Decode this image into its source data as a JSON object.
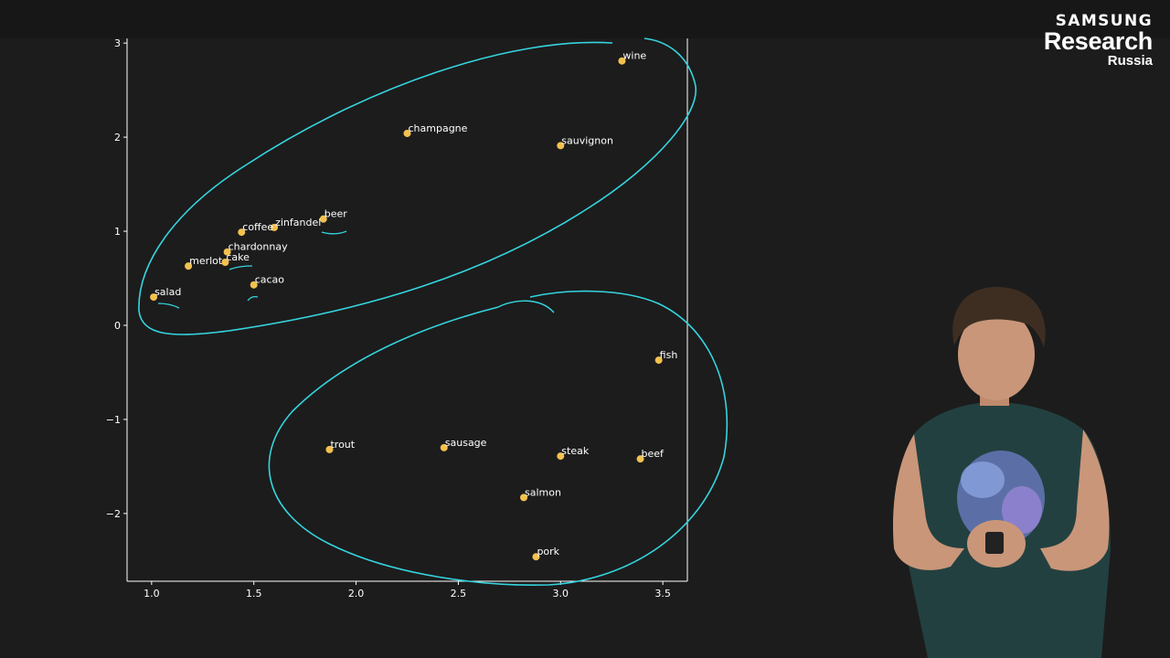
{
  "logo": {
    "brand": "SAMSUNG",
    "title": "Research",
    "subtitle": "Russia"
  },
  "colors": {
    "background": "#1c1c1c",
    "axes": "#ffffff",
    "point": "#f2c14e",
    "annotation": "#35d5df"
  },
  "chart_data": {
    "type": "scatter",
    "title": "",
    "xlabel": "",
    "ylabel": "",
    "xlim": [
      0.88,
      3.62
    ],
    "ylim": [
      -2.72,
      3.05
    ],
    "xticks": [
      1.0,
      1.5,
      2.0,
      2.5,
      3.0,
      3.5
    ],
    "xtick_labels": [
      "1.0",
      "1.5",
      "2.0",
      "2.5",
      "3.0",
      "3.5"
    ],
    "yticks": [
      -2,
      -1,
      0,
      1,
      2,
      3
    ],
    "ytick_labels": [
      "−2",
      "−1",
      "0",
      "1",
      "2",
      "3"
    ],
    "grid": false,
    "points": [
      {
        "label": "wine",
        "x": 3.3,
        "y": 2.81
      },
      {
        "label": "champagne",
        "x": 2.25,
        "y": 2.04
      },
      {
        "label": "sauvignon",
        "x": 3.0,
        "y": 1.91
      },
      {
        "label": "beer",
        "x": 1.84,
        "y": 1.13
      },
      {
        "label": "zinfandel",
        "x": 1.6,
        "y": 1.04
      },
      {
        "label": "coffee",
        "x": 1.44,
        "y": 0.99
      },
      {
        "label": "chardonnay",
        "x": 1.37,
        "y": 0.78
      },
      {
        "label": "cake",
        "x": 1.36,
        "y": 0.67
      },
      {
        "label": "merlot",
        "x": 1.18,
        "y": 0.63
      },
      {
        "label": "cacao",
        "x": 1.5,
        "y": 0.43
      },
      {
        "label": "salad",
        "x": 1.01,
        "y": 0.3
      },
      {
        "label": "fish",
        "x": 3.48,
        "y": -0.37
      },
      {
        "label": "trout",
        "x": 1.87,
        "y": -1.32
      },
      {
        "label": "sausage",
        "x": 2.43,
        "y": -1.3
      },
      {
        "label": "steak",
        "x": 3.0,
        "y": -1.39
      },
      {
        "label": "beef",
        "x": 3.39,
        "y": -1.42
      },
      {
        "label": "salmon",
        "x": 2.82,
        "y": -1.83
      },
      {
        "label": "pork",
        "x": 2.88,
        "y": -2.46
      }
    ]
  }
}
